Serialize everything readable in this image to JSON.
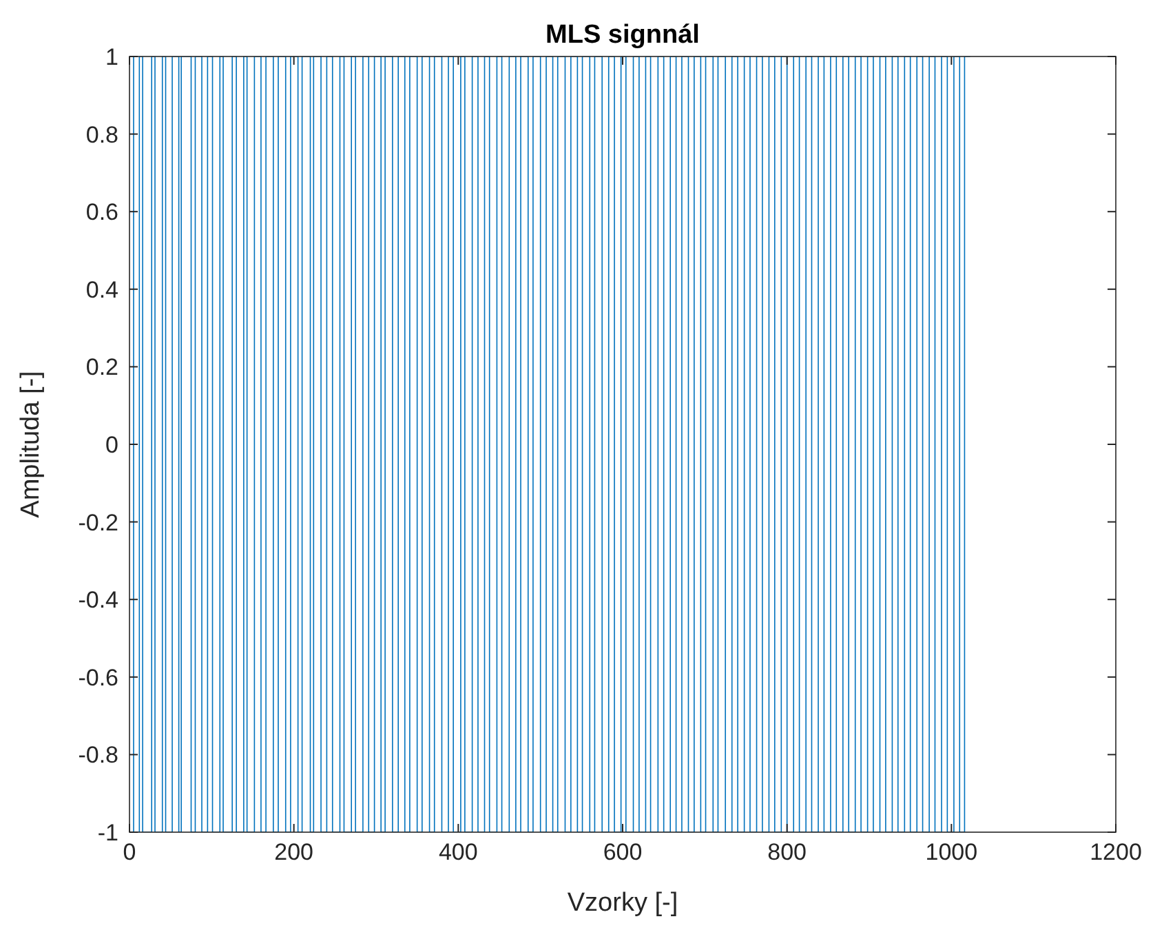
{
  "chart_data": {
    "type": "step",
    "title": "MLS signnál",
    "xlabel": "Vzorky [-]",
    "ylabel": "Amplituda [-]",
    "xlim": [
      0,
      1200
    ],
    "xticks": [
      0,
      200,
      400,
      600,
      800,
      1000,
      1200
    ],
    "ylim": [
      -1,
      1
    ],
    "yticks": [
      -1,
      -0.8,
      -0.6,
      -0.4,
      -0.2,
      0,
      0.2,
      0.4,
      0.6,
      0.8,
      1
    ],
    "grid": false,
    "marker": "none",
    "line_style": "solid",
    "series": [
      {
        "color": "#0072bd",
        "x": [
          0,
          5,
          12,
          16,
          27,
          31,
          40,
          44,
          52,
          60,
          63,
          75,
          80,
          88,
          95,
          101,
          110,
          114,
          125,
          130,
          139,
          143,
          152,
          160,
          166,
          175,
          181,
          190,
          196,
          205,
          210,
          220,
          224,
          233,
          240,
          247,
          256,
          261,
          270,
          275,
          284,
          291,
          298,
          306,
          311,
          320,
          327,
          335,
          341,
          350,
          356,
          365,
          371,
          380,
          388,
          394,
          403,
          408,
          417,
          424,
          432,
          438,
          447,
          453,
          462,
          470,
          476,
          485,
          491,
          500,
          507,
          515,
          521,
          530,
          537,
          545,
          551,
          560,
          566,
          575,
          583,
          590,
          598,
          604,
          613,
          620,
          628,
          634,
          643,
          650,
          658,
          665,
          672,
          680,
          687,
          695,
          701,
          710,
          716,
          725,
          733,
          740,
          748,
          755,
          763,
          770,
          778,
          785,
          793,
          800,
          808,
          815,
          823,
          830,
          838,
          845,
          853,
          860,
          868,
          875,
          883,
          890,
          898,
          905,
          913,
          920,
          928,
          935,
          943,
          950,
          958,
          965,
          973,
          980,
          988,
          995,
          1003,
          1010,
          1016,
          1023
        ],
        "values": [
          1,
          -1,
          1,
          -1,
          1,
          -1,
          1,
          -1,
          1,
          -1,
          1,
          -1,
          1,
          -1,
          1,
          -1,
          1,
          -1,
          1,
          -1,
          1,
          -1,
          1,
          -1,
          1,
          -1,
          1,
          -1,
          1,
          -1,
          1,
          -1,
          1,
          -1,
          1,
          -1,
          1,
          -1,
          1,
          -1,
          1,
          -1,
          1,
          -1,
          1,
          -1,
          1,
          -1,
          1,
          -1,
          1,
          -1,
          1,
          -1,
          1,
          -1,
          1,
          -1,
          1,
          -1,
          1,
          -1,
          1,
          -1,
          1,
          -1,
          1,
          -1,
          1,
          -1,
          1,
          -1,
          1,
          -1,
          1,
          -1,
          1,
          -1,
          1,
          -1,
          1,
          -1,
          1,
          -1,
          1,
          -1,
          1,
          -1,
          1,
          -1,
          1,
          -1,
          1,
          -1,
          1,
          -1,
          1,
          -1,
          1,
          -1,
          1,
          -1,
          1,
          -1,
          1,
          -1,
          1,
          -1,
          1,
          -1,
          1,
          -1,
          1,
          -1,
          1,
          -1,
          1,
          -1,
          1,
          -1,
          1,
          -1,
          1,
          -1,
          1,
          -1,
          1,
          -1,
          1,
          -1,
          1,
          -1,
          1,
          -1,
          1,
          -1,
          1,
          -1,
          1,
          1
        ]
      }
    ]
  }
}
